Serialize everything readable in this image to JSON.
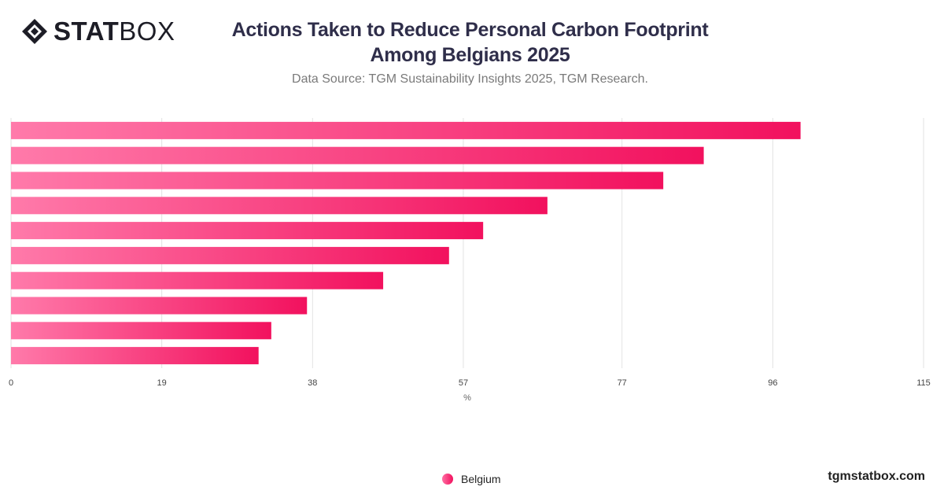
{
  "logo": {
    "bold": "STAT",
    "regular": "BOX"
  },
  "title_line1": "Actions Taken to Reduce Personal Carbon Footprint",
  "title_line2": "Among Belgians 2025",
  "subtitle": "Data Source: TGM Sustainability Insights 2025, TGM Research.",
  "footer_brand": "tgmstatbox.com",
  "colors": {
    "bar_start": "#ff7aaa",
    "bar_end": "#f2115e",
    "grid": "#e2e2e2",
    "title": "#2f2e4a"
  },
  "chart_data": {
    "type": "bar",
    "orientation": "horizontal",
    "categories": [
      "",
      "",
      "",
      "",
      "",
      "",
      "",
      "",
      "",
      ""
    ],
    "series": [
      {
        "name": "Belgium",
        "values": [
          99.5,
          87.3,
          82.2,
          67.6,
          59.5,
          55.2,
          46.9,
          37.3,
          32.8,
          31.2
        ]
      }
    ],
    "xlim": [
      0,
      115
    ],
    "xticks": [
      "0",
      "19",
      "38",
      "57",
      "77",
      "96",
      "115"
    ],
    "xlabel": "%",
    "ylabel": "",
    "grid": true,
    "legend_position": "bottom-center"
  }
}
